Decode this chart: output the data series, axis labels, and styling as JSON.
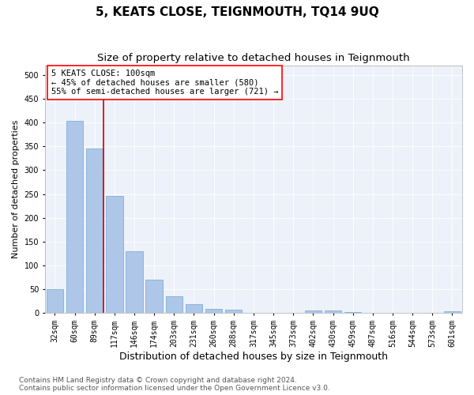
{
  "title": "5, KEATS CLOSE, TEIGNMOUTH, TQ14 9UQ",
  "subtitle": "Size of property relative to detached houses in Teignmouth",
  "xlabel": "Distribution of detached houses by size in Teignmouth",
  "ylabel": "Number of detached properties",
  "categories": [
    "32sqm",
    "60sqm",
    "89sqm",
    "117sqm",
    "146sqm",
    "174sqm",
    "203sqm",
    "231sqm",
    "260sqm",
    "288sqm",
    "317sqm",
    "345sqm",
    "373sqm",
    "402sqm",
    "430sqm",
    "459sqm",
    "487sqm",
    "516sqm",
    "544sqm",
    "573sqm",
    "601sqm"
  ],
  "values": [
    50,
    403,
    345,
    246,
    130,
    70,
    35,
    18,
    8,
    6,
    0,
    0,
    0,
    5,
    5,
    1,
    0,
    0,
    0,
    0,
    3
  ],
  "bar_color": "#aec6e8",
  "bar_edge_color": "#6aaad4",
  "vline_color": "#cc0000",
  "vline_x": 2.43,
  "annotation_text": "5 KEATS CLOSE: 100sqm\n← 45% of detached houses are smaller (580)\n55% of semi-detached houses are larger (721) →",
  "ylim_max": 520,
  "yticks": [
    0,
    50,
    100,
    150,
    200,
    250,
    300,
    350,
    400,
    450,
    500
  ],
  "footer_line1": "Contains HM Land Registry data © Crown copyright and database right 2024.",
  "footer_line2": "Contains public sector information licensed under the Open Government Licence v3.0.",
  "plot_bg_color": "#edf1f9",
  "grid_color": "#ffffff",
  "title_fontsize": 11,
  "subtitle_fontsize": 9.5,
  "xlabel_fontsize": 9,
  "ylabel_fontsize": 8,
  "tick_fontsize": 7,
  "annotation_fontsize": 7.5,
  "footer_fontsize": 6.5
}
